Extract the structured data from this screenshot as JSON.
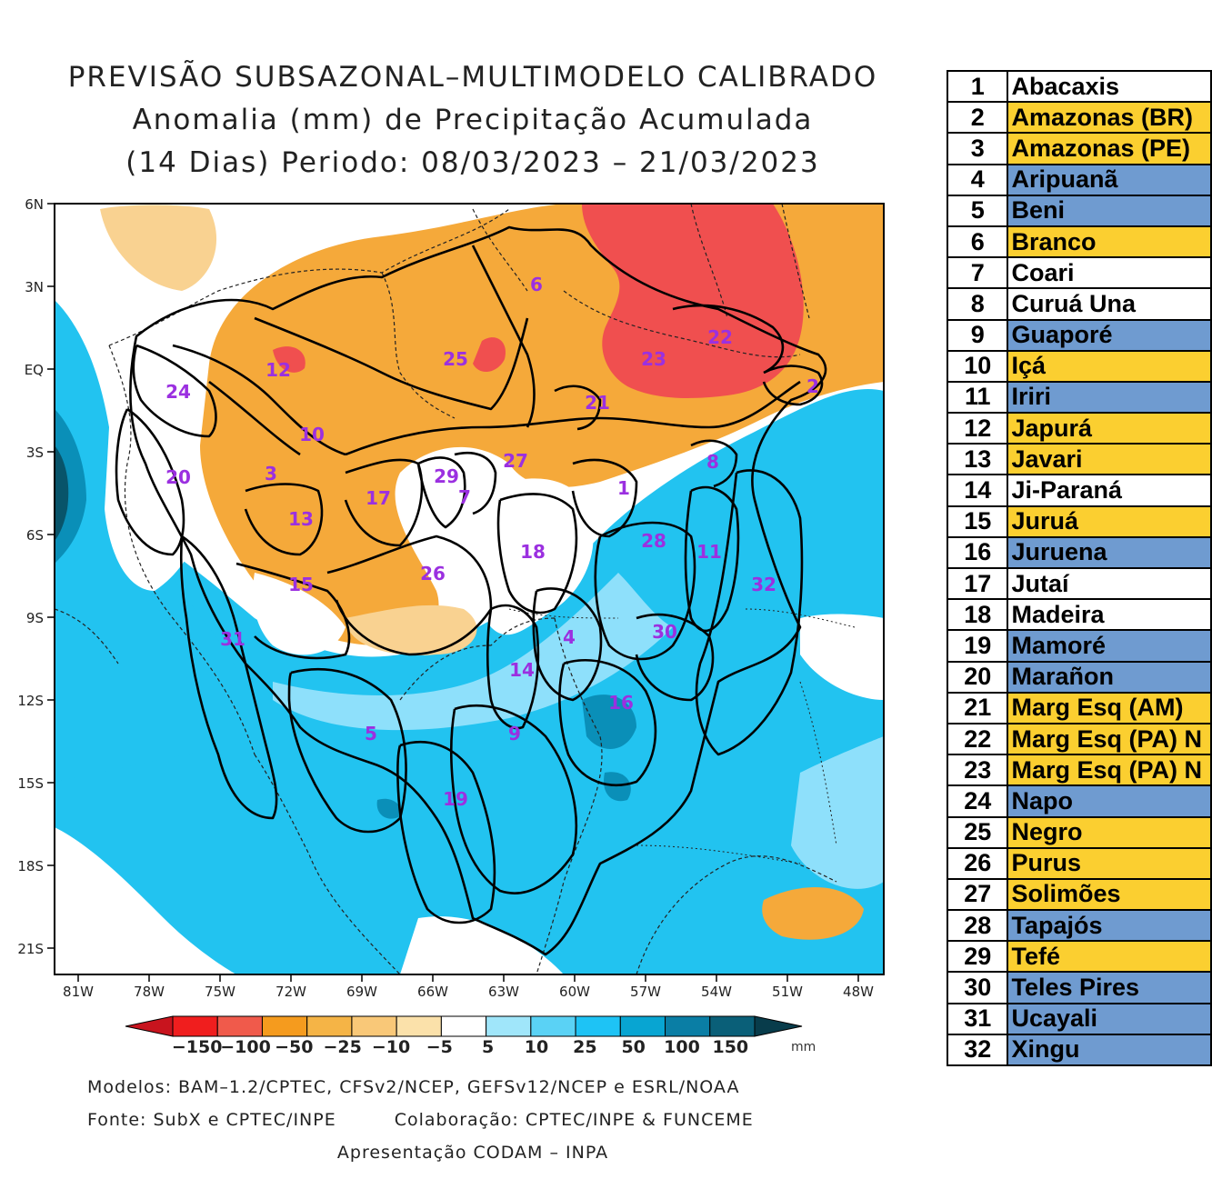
{
  "title": {
    "line1": "PREVISÃO SUBSAZONAL–MULTIMODELO CALIBRADO",
    "line2": "Anomalia (mm) de Precipitação Acumulada",
    "line3": "(14 Dias) Periodo: 08/03/2023 – 21/03/2023"
  },
  "map": {
    "lat_labels": [
      "6N",
      "3N",
      "EQ",
      "3S",
      "6S",
      "9S",
      "12S",
      "15S",
      "18S",
      "21S"
    ],
    "lon_labels": [
      "81W",
      "78W",
      "75W",
      "72W",
      "69W",
      "66W",
      "63W",
      "60W",
      "57W",
      "54W",
      "51W",
      "48W"
    ],
    "basin_labels": [
      {
        "id": "1",
        "label": "1"
      },
      {
        "id": "2",
        "label": "2"
      },
      {
        "id": "3",
        "label": "3"
      },
      {
        "id": "4",
        "label": "4"
      },
      {
        "id": "5",
        "label": "5"
      },
      {
        "id": "6",
        "label": "6"
      },
      {
        "id": "7",
        "label": "7"
      },
      {
        "id": "8",
        "label": "8"
      },
      {
        "id": "9",
        "label": "9"
      },
      {
        "id": "10",
        "label": "10"
      },
      {
        "id": "11",
        "label": "11"
      },
      {
        "id": "12",
        "label": "12"
      },
      {
        "id": "13",
        "label": "13"
      },
      {
        "id": "14",
        "label": "14"
      },
      {
        "id": "15",
        "label": "15"
      },
      {
        "id": "16",
        "label": "16"
      },
      {
        "id": "17",
        "label": "17"
      },
      {
        "id": "18",
        "label": "18"
      },
      {
        "id": "19",
        "label": "19"
      },
      {
        "id": "20",
        "label": "20"
      },
      {
        "id": "21",
        "label": "21"
      },
      {
        "id": "22",
        "label": "22"
      },
      {
        "id": "23",
        "label": "23"
      },
      {
        "id": "24",
        "label": "24"
      },
      {
        "id": "25",
        "label": "25"
      },
      {
        "id": "26",
        "label": "26"
      },
      {
        "id": "27",
        "label": "27"
      },
      {
        "id": "28",
        "label": "28"
      },
      {
        "id": "29",
        "label": "29"
      },
      {
        "id": "30",
        "label": "30"
      },
      {
        "id": "31",
        "label": "31"
      },
      {
        "id": "32",
        "label": "32"
      }
    ],
    "colors": {
      "dry_strong": "#f04f4f",
      "dry": "#f5a93a",
      "dry_light": "#f9d291",
      "neutral": "#ffffff",
      "wet_light": "#8ee0fb",
      "wet": "#22c3f0",
      "wet_strong": "#0a8fb8",
      "wet_very": "#08546a",
      "label": "#9b30e0"
    }
  },
  "colorbar": {
    "labels": [
      "−150",
      "−100",
      "−50",
      "−25",
      "−10",
      "−5",
      "5",
      "10",
      "25",
      "50",
      "100",
      "150"
    ],
    "unit": "mm",
    "colors": [
      "#c8141e",
      "#f01e1e",
      "#f05a4b",
      "#f59b1e",
      "#f5b446",
      "#f9c878",
      "#fbe1aa",
      "#ffffff",
      "#a0e6fa",
      "#5ad2f5",
      "#1ec3f5",
      "#08a5d2",
      "#0a7ea5",
      "#0a5f78",
      "#083c4b"
    ]
  },
  "credits": {
    "models": "Modelos: BAM–1.2/CPTEC, CFSv2/NCEP, GEFSv12/NCEP e ESRL/NOAA",
    "source": "Fonte: SubX e CPTEC/INPE",
    "collab": "Colaboração: CPTEC/INPE & FUNCEME",
    "presentation": "Apresentação CODAM – INPA"
  },
  "basins": [
    {
      "num": "1",
      "name": "Abacaxis",
      "category": "neutral",
      "color": "#ffffff"
    },
    {
      "num": "2",
      "name": "Amazonas (BR)",
      "category": "dry",
      "color": "#fbcf30"
    },
    {
      "num": "3",
      "name": "Amazonas (PE)",
      "category": "dry",
      "color": "#fbcf30"
    },
    {
      "num": "4",
      "name": "Aripuanã",
      "category": "wet",
      "color": "#6f9bd0"
    },
    {
      "num": "5",
      "name": "Beni",
      "category": "wet",
      "color": "#6f9bd0"
    },
    {
      "num": "6",
      "name": "Branco",
      "category": "dry",
      "color": "#fbcf30"
    },
    {
      "num": "7",
      "name": "Coari",
      "category": "neutral",
      "color": "#ffffff"
    },
    {
      "num": "8",
      "name": "Curuá Una",
      "category": "neutral",
      "color": "#ffffff"
    },
    {
      "num": "9",
      "name": "Guaporé",
      "category": "wet",
      "color": "#6f9bd0"
    },
    {
      "num": "10",
      "name": "Içá",
      "category": "dry",
      "color": "#fbcf30"
    },
    {
      "num": "11",
      "name": "Iriri",
      "category": "wet",
      "color": "#6f9bd0"
    },
    {
      "num": "12",
      "name": "Japurá",
      "category": "dry",
      "color": "#fbcf30"
    },
    {
      "num": "13",
      "name": "Javari",
      "category": "dry",
      "color": "#fbcf30"
    },
    {
      "num": "14",
      "name": "Ji-Paraná",
      "category": "neutral",
      "color": "#ffffff"
    },
    {
      "num": "15",
      "name": "Juruá",
      "category": "dry",
      "color": "#fbcf30"
    },
    {
      "num": "16",
      "name": "Juruena",
      "category": "wet",
      "color": "#6f9bd0"
    },
    {
      "num": "17",
      "name": "Jutaí",
      "category": "neutral",
      "color": "#ffffff"
    },
    {
      "num": "18",
      "name": "Madeira",
      "category": "neutral",
      "color": "#ffffff"
    },
    {
      "num": "19",
      "name": "Mamoré",
      "category": "wet",
      "color": "#6f9bd0"
    },
    {
      "num": "20",
      "name": "Marañon",
      "category": "wet",
      "color": "#6f9bd0"
    },
    {
      "num": "21",
      "name": "Marg Esq (AM)",
      "category": "dry",
      "color": "#fbcf30"
    },
    {
      "num": "22",
      "name": "Marg Esq (PA) N",
      "category": "dry",
      "color": "#fbcf30"
    },
    {
      "num": "23",
      "name": "Marg Esq (PA) N",
      "category": "dry",
      "color": "#fbcf30"
    },
    {
      "num": "24",
      "name": "Napo",
      "category": "wet",
      "color": "#6f9bd0"
    },
    {
      "num": "25",
      "name": "Negro",
      "category": "dry",
      "color": "#fbcf30"
    },
    {
      "num": "26",
      "name": "Purus",
      "category": "dry",
      "color": "#fbcf30"
    },
    {
      "num": "27",
      "name": "Solimões",
      "category": "dry",
      "color": "#fbcf30"
    },
    {
      "num": "28",
      "name": "Tapajós",
      "category": "wet",
      "color": "#6f9bd0"
    },
    {
      "num": "29",
      "name": "Tefé",
      "category": "dry",
      "color": "#fbcf30"
    },
    {
      "num": "30",
      "name": "Teles Pires",
      "category": "wet",
      "color": "#6f9bd0"
    },
    {
      "num": "31",
      "name": "Ucayali",
      "category": "wet",
      "color": "#6f9bd0"
    },
    {
      "num": "32",
      "name": "Xingu",
      "category": "wet",
      "color": "#6f9bd0"
    }
  ]
}
